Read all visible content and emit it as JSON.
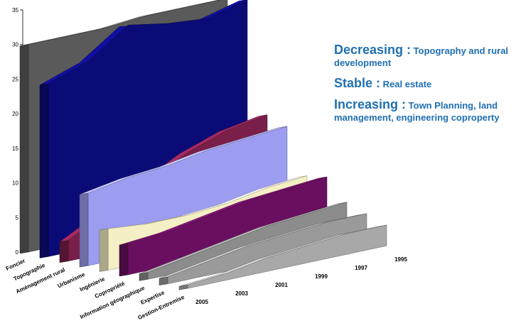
{
  "chart_data": {
    "type": "area3d",
    "x": [
      "2005",
      "2003",
      "2001",
      "1999",
      "1997",
      "1995"
    ],
    "ylim": [
      0,
      35
    ],
    "yticks": [
      0,
      5,
      10,
      15,
      20,
      25,
      30,
      35
    ],
    "series": [
      {
        "name": "Foncier",
        "color": "#5a5a5a",
        "values": [
          30,
          30,
          30,
          30.5,
          30.5,
          30.5
        ]
      },
      {
        "name": "Topographie",
        "color": "#0b0b78",
        "values": [
          25,
          27,
          31,
          30,
          29.5,
          31
        ]
      },
      {
        "name": "Aménagement rural",
        "color": "#7a1f4a",
        "values": [
          3,
          6,
          9,
          12,
          14,
          15
        ]
      },
      {
        "name": "Urbanisme",
        "color": "#9c9cf0",
        "values": [
          10.5,
          11.5,
          12,
          13,
          13.5,
          14
        ]
      },
      {
        "name": "Ingénierie",
        "color": "#f4efc4",
        "values": [
          6,
          5.5,
          5.5,
          6,
          7,
          7.5
        ]
      },
      {
        "name": "Copropriété",
        "color": "#6a0f60",
        "values": [
          4.5,
          5,
          6,
          7,
          7.5,
          8
        ]
      },
      {
        "name": "Information géographique",
        "color": "#8c8c8c",
        "values": [
          1,
          2,
          3,
          4,
          4.5,
          5
        ]
      },
      {
        "name": "Expertise",
        "color": "#9a9a9a",
        "values": [
          1,
          2,
          3,
          3.5,
          4,
          4
        ]
      },
      {
        "name": "Gestion-Entremise",
        "color": "#a8a8a8",
        "values": [
          0.5,
          1,
          2,
          2.5,
          3,
          3
        ]
      }
    ],
    "annotations": [
      {
        "label": "Decreasing :",
        "text": "Topography and rural development"
      },
      {
        "label": "Stable :",
        "text": "Real estate"
      },
      {
        "label": "Increasing :",
        "text": "Town Planning, land management, engineering coproperty"
      }
    ]
  }
}
